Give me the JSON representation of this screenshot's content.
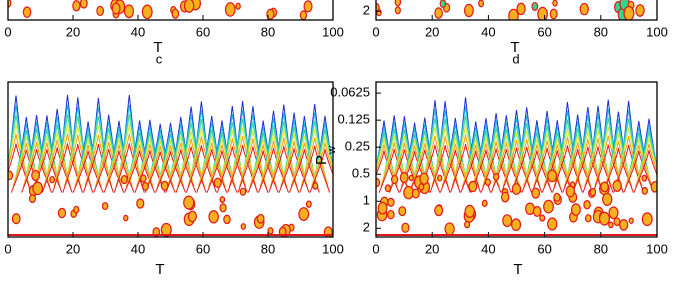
{
  "chart_data": [
    {
      "type": "contour",
      "xlabel": "T",
      "xlabel_subscript": "c",
      "xlim": [
        0,
        100
      ],
      "xticks": [
        0,
        20,
        40,
        60,
        80,
        100
      ]
    },
    {
      "type": "contour",
      "xlabel": "T",
      "xlabel_subscript": "d",
      "xlim": [
        0,
        100
      ],
      "xticks": [
        0,
        20,
        40,
        60,
        80,
        100
      ],
      "ylim": [
        0.047,
        2.5
      ],
      "yticks": [
        2
      ],
      "log_y": true,
      "y_inverted": true
    },
    {
      "type": "contour",
      "xlabel": "T",
      "xlim": [
        0,
        100
      ],
      "xticks": [
        0,
        20,
        40,
        60,
        80,
        100
      ]
    },
    {
      "type": "contour",
      "xlabel": "T",
      "ylabel": "P",
      "ylabel_subscript": "w",
      "xlim": [
        0,
        100
      ],
      "xticks": [
        0,
        20,
        40,
        60,
        80,
        100
      ],
      "ylim": [
        0.047,
        2.5
      ],
      "yticks": [
        0.0625,
        0.125,
        0.25,
        0.5,
        1,
        2
      ],
      "log_y": true,
      "y_inverted": true
    }
  ]
}
